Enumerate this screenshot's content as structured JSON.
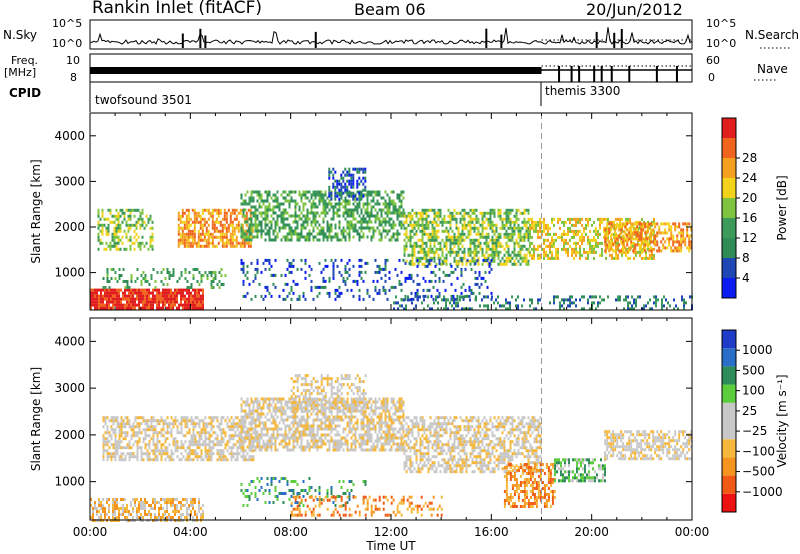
{
  "header": {
    "station": "Rankin Inlet (fitACF)",
    "beam": "Beam 06",
    "date": "20/Jun/2012"
  },
  "top_panel_labels": {
    "nsky": "N.Sky",
    "freq": "Freq.",
    "freq_unit": "[MHz]",
    "cpid": "CPID",
    "nsearch": "N.Search",
    "nave": "Nave",
    "nsky_ticks": [
      "10^5",
      "10^0"
    ],
    "nsearch_ticks": [
      "10^5",
      "10^0"
    ],
    "freq_ticks": [
      "10",
      "8"
    ],
    "nave_ticks": [
      "60",
      "0"
    ],
    "cpid_before": "twofsound 3501",
    "cpid_after": "themis 3300",
    "cpid_switch_hour": 18.0
  },
  "colors": {
    "power": [
      "#0a1cf0",
      "#1e46b4",
      "#2f8c57",
      "#3c9b5a",
      "#7fc43e",
      "#f2d21a",
      "#f5a01e",
      "#f0641e",
      "#e11e1e"
    ],
    "velocity": [
      "#ee1111",
      "#f05a14",
      "#f5941e",
      "#f5b83c",
      "#c8c8c8",
      "#c8c8c8",
      "#5ccd3c",
      "#2e8c5a",
      "#2a6ec8",
      "#1e3cc8"
    ]
  },
  "chart_data": [
    {
      "type": "heatmap",
      "name": "power-panel",
      "ylabel": "Slant Range [km]",
      "xlabel": "",
      "colorbar_label": "Power [dB]",
      "colorbar_ticks": [
        "4",
        "8",
        "12",
        "16",
        "20",
        "24",
        "28"
      ],
      "x_ticks": [
        "00:00",
        "04:00",
        "08:00",
        "12:00",
        "16:00",
        "20:00",
        "00:00"
      ],
      "y_ticks": [
        "1000",
        "2000",
        "3000",
        "4000"
      ],
      "xlim": [
        0,
        24
      ],
      "ylim": [
        180,
        4500
      ],
      "echo_regions": [
        {
          "t0": 0.0,
          "t1": 4.5,
          "r0": 200,
          "r1": 650,
          "level": 8,
          "density": 0.9
        },
        {
          "t0": 0.5,
          "t1": 5.5,
          "r0": 650,
          "r1": 1100,
          "level": 3,
          "density": 0.25
        },
        {
          "t0": 0.3,
          "t1": 2.5,
          "r0": 1500,
          "r1": 2400,
          "level": 4,
          "density": 0.45
        },
        {
          "t0": 3.5,
          "t1": 6.5,
          "r0": 1600,
          "r1": 2400,
          "level": 6,
          "density": 0.7
        },
        {
          "t0": 6.0,
          "t1": 12.5,
          "r0": 1700,
          "r1": 2800,
          "level": 3,
          "density": 0.55
        },
        {
          "t0": 9.5,
          "t1": 11.0,
          "r0": 2600,
          "r1": 3300,
          "level": 1,
          "density": 0.5
        },
        {
          "t0": 12.5,
          "t1": 17.5,
          "r0": 1200,
          "r1": 2400,
          "level": 4,
          "density": 0.6
        },
        {
          "t0": 17.5,
          "t1": 22.5,
          "r0": 1300,
          "r1": 2200,
          "level": 5,
          "density": 0.55
        },
        {
          "t0": 20.5,
          "t1": 24.0,
          "r0": 1500,
          "r1": 2100,
          "level": 6,
          "density": 0.6
        },
        {
          "t0": 6.0,
          "t1": 16.0,
          "r0": 400,
          "r1": 1300,
          "level": 1,
          "density": 0.2
        },
        {
          "t0": 12.0,
          "t1": 24.0,
          "r0": 200,
          "r1": 500,
          "level": 2,
          "density": 0.3
        }
      ]
    },
    {
      "type": "heatmap",
      "name": "velocity-panel",
      "ylabel": "Slant Range [km]",
      "xlabel": "Time UT",
      "colorbar_label": "Velocity [m s⁻¹]",
      "colorbar_ticks": [
        "1000",
        "500",
        "100",
        "25",
        "−25",
        "−100",
        "−500",
        "−1000"
      ],
      "x_ticks": [
        "00:00",
        "04:00",
        "08:00",
        "12:00",
        "16:00",
        "20:00",
        "00:00"
      ],
      "y_ticks": [
        "1000",
        "2000",
        "3000",
        "4000"
      ],
      "xlim": [
        0,
        24
      ],
      "ylim": [
        180,
        4500
      ],
      "echo_regions": [
        {
          "t0": 0.0,
          "t1": 4.5,
          "r0": 200,
          "r1": 650,
          "level": 3,
          "density": 0.6
        },
        {
          "t0": 0.5,
          "t1": 6.5,
          "r0": 1500,
          "r1": 2400,
          "level": 4,
          "density": 0.6
        },
        {
          "t0": 6.0,
          "t1": 12.5,
          "r0": 1700,
          "r1": 2800,
          "level": 4,
          "density": 0.65
        },
        {
          "t0": 8.0,
          "t1": 11.0,
          "r0": 2500,
          "r1": 3300,
          "level": 4,
          "density": 0.45
        },
        {
          "t0": 12.5,
          "t1": 18.0,
          "r0": 1200,
          "r1": 2400,
          "level": 4,
          "density": 0.6
        },
        {
          "t0": 16.5,
          "t1": 18.5,
          "r0": 500,
          "r1": 1400,
          "level": 2,
          "density": 0.5
        },
        {
          "t0": 18.5,
          "t1": 20.5,
          "r0": 1000,
          "r1": 1500,
          "level": 6,
          "density": 0.6
        },
        {
          "t0": 20.5,
          "t1": 24.0,
          "r0": 1500,
          "r1": 2100,
          "level": 4,
          "density": 0.6
        },
        {
          "t0": 6.0,
          "t1": 11.0,
          "r0": 500,
          "r1": 1100,
          "level": 7,
          "density": 0.2
        },
        {
          "t0": 8.0,
          "t1": 14.0,
          "r0": 300,
          "r1": 700,
          "level": 2,
          "density": 0.3
        }
      ]
    }
  ]
}
